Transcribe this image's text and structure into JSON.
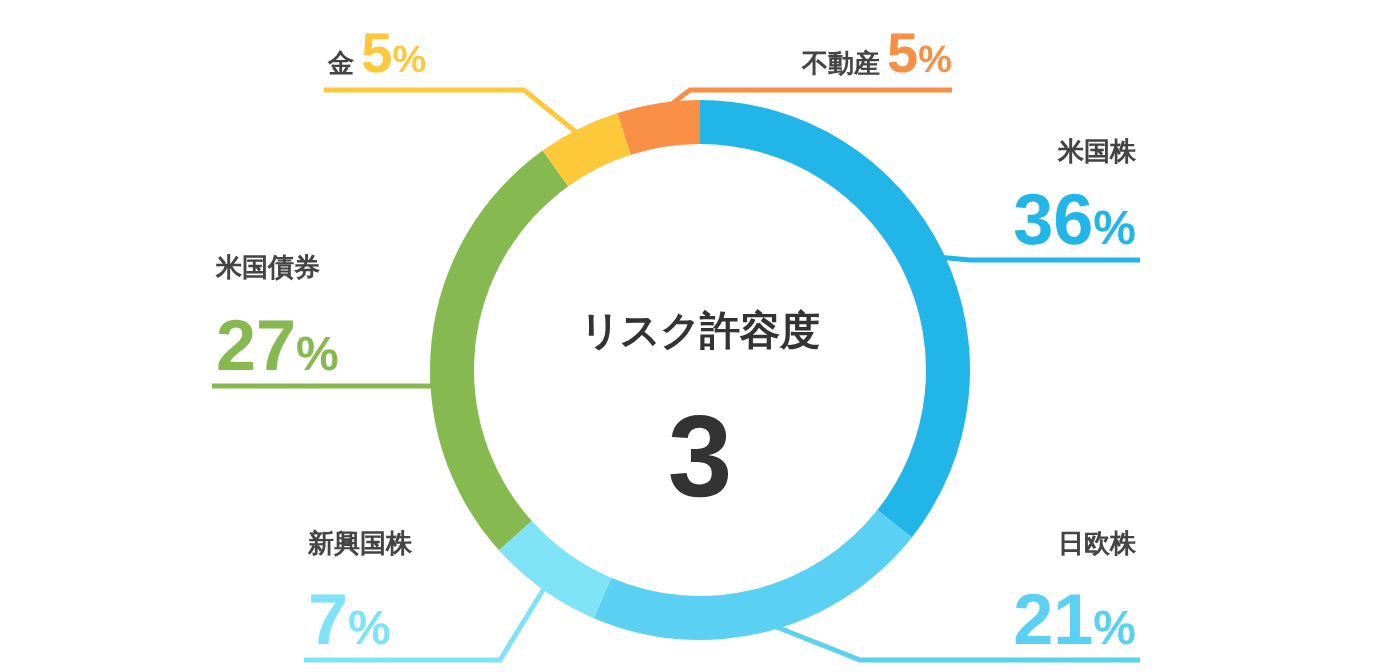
{
  "chart_data": {
    "type": "donut",
    "title": "リスク許容度",
    "annotations": [
      "3"
    ],
    "categories": [
      "米国株",
      "日欧株",
      "新興国株",
      "米国債券",
      "金",
      "不動産"
    ],
    "values": [
      36,
      21,
      7,
      27,
      5,
      5
    ],
    "colors": [
      "#22b5e8",
      "#5ad0f2",
      "#7fe3f8",
      "#86b94f",
      "#fdc83a",
      "#f98f45"
    ],
    "value_labels": [
      "36%",
      "21%",
      "7%",
      "27%",
      "5%",
      "5%"
    ]
  }
}
